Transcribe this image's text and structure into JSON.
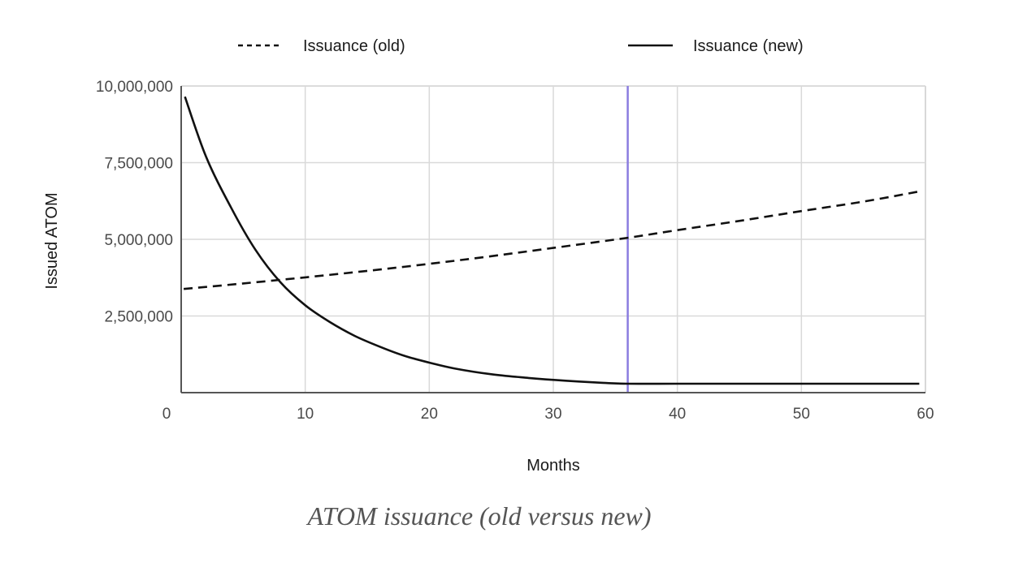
{
  "chart_data": {
    "type": "line",
    "title": "",
    "xlabel": "Months",
    "ylabel": "Issued ATOM",
    "xlim": [
      0,
      60
    ],
    "ylim": [
      0,
      10000000
    ],
    "x_ticks": [
      0,
      10,
      20,
      30,
      40,
      50,
      60
    ],
    "x_tick_labels": [
      "0",
      "10",
      "20",
      "30",
      "40",
      "50",
      "60"
    ],
    "y_ticks": [
      2500000,
      5000000,
      7500000,
      10000000
    ],
    "y_tick_labels": [
      "2,500,000",
      "5,000,000",
      "7,500,000",
      "10,000,000"
    ],
    "grid": true,
    "legend_position": "top",
    "vertical_marker": {
      "x": 36,
      "color": "#8a7ce0"
    },
    "series": [
      {
        "name": "Issuance (old)",
        "style": "dashed",
        "color": "#111111",
        "x": [
          0.2,
          5,
          10,
          15,
          20,
          25,
          30,
          36,
          40,
          45,
          50,
          55,
          59.5
        ],
        "y": [
          3380000,
          3560000,
          3760000,
          3970000,
          4200000,
          4450000,
          4720000,
          5050000,
          5300000,
          5600000,
          5920000,
          6230000,
          6560000
        ]
      },
      {
        "name": "Issuance (new)",
        "style": "solid",
        "color": "#111111",
        "x": [
          0.3,
          2,
          4,
          6,
          8,
          10,
          12,
          14,
          16,
          18,
          20,
          22,
          25,
          28,
          31,
          34,
          36,
          40,
          45,
          50,
          55,
          59.5
        ],
        "y": [
          9650000,
          7700000,
          6050000,
          4650000,
          3600000,
          2850000,
          2300000,
          1850000,
          1500000,
          1200000,
          980000,
          790000,
          600000,
          480000,
          390000,
          320000,
          290000,
          290000,
          290000,
          290000,
          290000,
          290000
        ]
      }
    ]
  },
  "caption": "ATOM issuance (old versus new)"
}
